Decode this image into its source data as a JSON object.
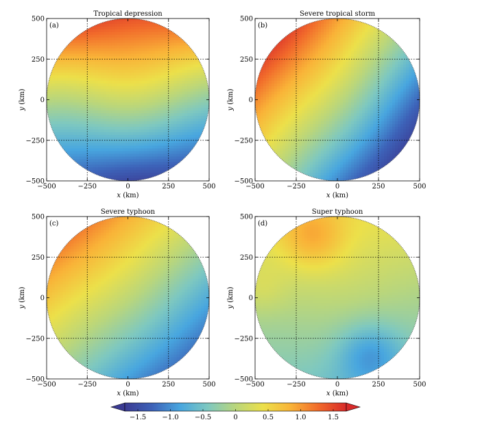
{
  "chart_data": [
    {
      "type": "heatmap",
      "panel_label": "(a)",
      "title": "Tropical depression",
      "xlabel": "x (km)",
      "ylabel": "y (km)",
      "xlim": [
        -500,
        500
      ],
      "ylim": [
        -500,
        500
      ],
      "xticks": [
        "−500",
        "−250",
        "0",
        "250",
        "500"
      ],
      "yticks": [
        "500",
        "250",
        "0",
        "−250",
        "−500"
      ],
      "grid": true,
      "domain": "circle of radius 500 km",
      "field": {
        "angle_deg": 96,
        "amplitude": 1.5,
        "wobble": 0.15,
        "highs": [],
        "lows": []
      }
    },
    {
      "type": "heatmap",
      "panel_label": "(b)",
      "title": "Severe tropical storm",
      "xlabel": "x (km)",
      "ylabel": "y (km)",
      "xlim": [
        -500,
        500
      ],
      "ylim": [
        -500,
        500
      ],
      "xticks": [
        "−500",
        "−250",
        "0",
        "250",
        "500"
      ],
      "yticks": [
        "500",
        "250",
        "0",
        "−250",
        "−500"
      ],
      "grid": true,
      "domain": "circle of radius 500 km",
      "field": {
        "angle_deg": 140,
        "amplitude": 1.55,
        "wobble": 0.08,
        "highs": [],
        "lows": []
      }
    },
    {
      "type": "heatmap",
      "panel_label": "(c)",
      "title": "Severe typhoon",
      "xlabel": "x (km)",
      "ylabel": "y (km)",
      "xlim": [
        -500,
        500
      ],
      "ylim": [
        -500,
        500
      ],
      "xticks": [
        "−500",
        "−250",
        "0",
        "250",
        "500"
      ],
      "yticks": [
        "500",
        "250",
        "0",
        "−250",
        "−500"
      ],
      "grid": true,
      "domain": "circle of radius 500 km",
      "field": {
        "angle_deg": 130,
        "amplitude": 1.15,
        "wobble": 0.05,
        "highs": [],
        "lows": []
      }
    },
    {
      "type": "heatmap",
      "panel_label": "(d)",
      "title": "Super typhoon",
      "xlabel": "x (km)",
      "ylabel": "y (km)",
      "xlim": [
        -500,
        500
      ],
      "ylim": [
        -500,
        500
      ],
      "xticks": [
        "−500",
        "−250",
        "0",
        "250",
        "500"
      ],
      "yticks": [
        "500",
        "250",
        "0",
        "−250",
        "−500"
      ],
      "grid": true,
      "domain": "circle of radius 500 km",
      "field": {
        "angle_deg": 95,
        "amplitude": 0.45,
        "wobble": 0.05,
        "highs": [
          {
            "x": -150,
            "y": 370,
            "amp": 0.55,
            "r": 200
          },
          {
            "x": -450,
            "y": 50,
            "amp": 0.2,
            "r": 150
          }
        ],
        "lows": [
          {
            "x": 200,
            "y": -350,
            "amp": 0.6,
            "r": 200
          }
        ]
      }
    }
  ],
  "colorbar": {
    "ticks": [
      "−1.5",
      "−1.0",
      "−0.5",
      "0",
      "0.5",
      "1.0",
      "1.5"
    ],
    "range": [
      -1.7,
      1.7
    ],
    "colormap": [
      "#3b3b93",
      "#3d62b8",
      "#48a6df",
      "#7ec8c0",
      "#b9d67c",
      "#ece04a",
      "#f9b338",
      "#f16a2b",
      "#d82a2a"
    ]
  }
}
